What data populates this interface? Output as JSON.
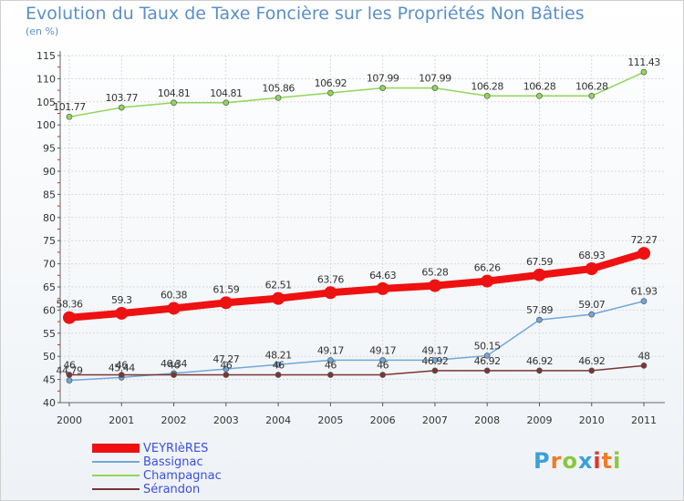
{
  "header": {
    "title": "Evolution du Taux de Taxe Foncière sur les Propriétés Non Bâties",
    "unit_label": "(en %)"
  },
  "logo": {
    "letters": [
      "P",
      "r",
      "o",
      "x",
      "i",
      "t",
      "i"
    ],
    "colors": [
      "#3aa0d8",
      "#f07c24",
      "#8cc63f",
      "#3aa0d8",
      "#e0342a",
      "#f07c24",
      "#8cc63f"
    ]
  },
  "chart_data": {
    "type": "line",
    "title": "Evolution du Taux de Taxe Foncière sur les Propriétés Non Bâties",
    "ylabel": "(en %)",
    "xlabel": "",
    "ylim": [
      40,
      115
    ],
    "yticks": [
      40,
      45,
      50,
      55,
      60,
      65,
      70,
      75,
      80,
      85,
      90,
      95,
      100,
      105,
      110,
      115
    ],
    "x": [
      "2000",
      "2001",
      "2002",
      "2003",
      "2004",
      "2005",
      "2006",
      "2007",
      "2008",
      "2009",
      "2010",
      "2011"
    ],
    "grid": true,
    "legend_position": "bottom-left",
    "series": [
      {
        "name": "VEYRIèRES",
        "color": "#ee1111",
        "values": [
          58.36,
          59.3,
          60.38,
          61.59,
          62.51,
          63.76,
          64.63,
          65.28,
          66.26,
          67.59,
          68.93,
          72.27
        ],
        "labels": [
          "58.36",
          "59.3",
          "60.38",
          "61.59",
          "62.51",
          "63.76",
          "64.63",
          "65.28",
          "66.26",
          "67.59",
          "68.93",
          "72.27"
        ]
      },
      {
        "name": "Bassignac",
        "color": "#6fa8dc",
        "values": [
          44.79,
          45.44,
          46.34,
          47.27,
          48.21,
          49.17,
          49.17,
          49.17,
          50.15,
          57.89,
          59.07,
          61.93
        ],
        "labels": [
          "44.79",
          "45.44",
          "46.34",
          "47.27",
          "48.21",
          "49.17",
          "49.17",
          "49.17",
          "50.15",
          "57.89",
          "59.07",
          "61.93"
        ]
      },
      {
        "name": "Champagnac",
        "color": "#8fd65a",
        "values": [
          101.77,
          103.77,
          104.81,
          104.81,
          105.86,
          106.92,
          107.99,
          107.99,
          106.28,
          106.28,
          106.28,
          111.43
        ],
        "labels": [
          "101.77",
          "103.77",
          "104.81",
          "104.81",
          "105.86",
          "106.92",
          "107.99",
          "107.99",
          "106.28",
          "106.28",
          "106.28",
          "111.43"
        ]
      },
      {
        "name": "Sérandon",
        "color": "#7a3535",
        "values": [
          46,
          46,
          46,
          46,
          46,
          46,
          46,
          46.92,
          46.92,
          46.92,
          46.92,
          48
        ],
        "labels": [
          "46",
          "46",
          "46",
          "46",
          "46",
          "46",
          "46",
          "46.92",
          "46.92",
          "46.92",
          "46.92",
          "48"
        ]
      }
    ]
  }
}
